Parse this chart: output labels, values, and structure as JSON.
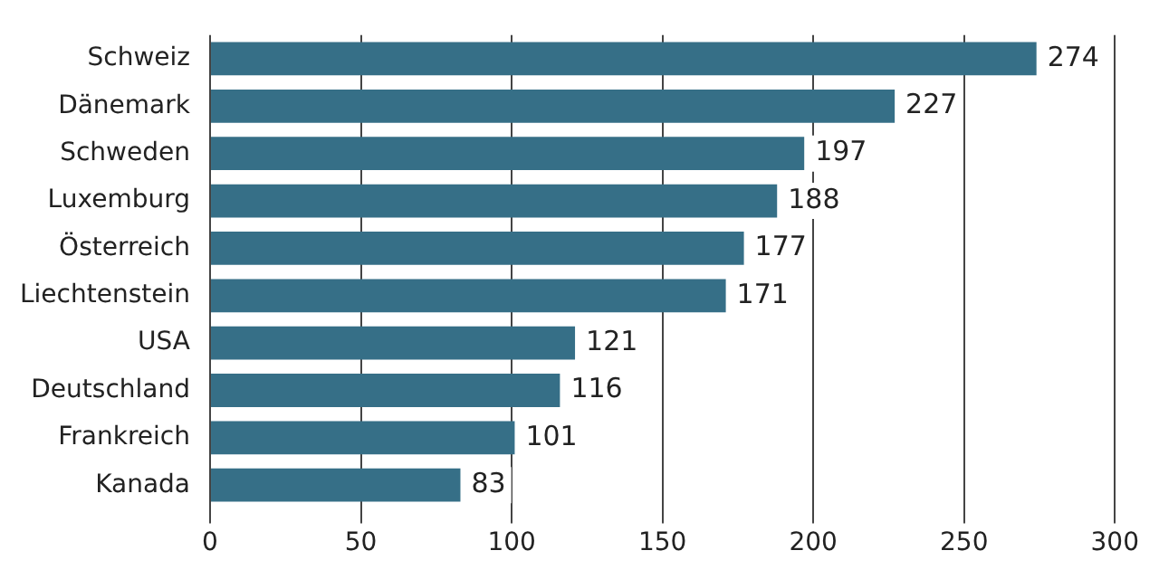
{
  "chart_data": {
    "type": "bar",
    "orientation": "horizontal",
    "categories": [
      "Schweiz",
      "Dänemark",
      "Schweden",
      "Luxemburg",
      "Österreich",
      "Liechtenstein",
      "USA",
      "Deutschland",
      "Frankreich",
      "Kanada"
    ],
    "values": [
      274,
      227,
      197,
      188,
      177,
      171,
      121,
      116,
      101,
      83
    ],
    "color": "#366f87",
    "xlim": [
      0,
      300
    ],
    "xticks": [
      0,
      50,
      100,
      150,
      200,
      250,
      300
    ],
    "grid": "x",
    "data_labels": true,
    "legend": false
  }
}
